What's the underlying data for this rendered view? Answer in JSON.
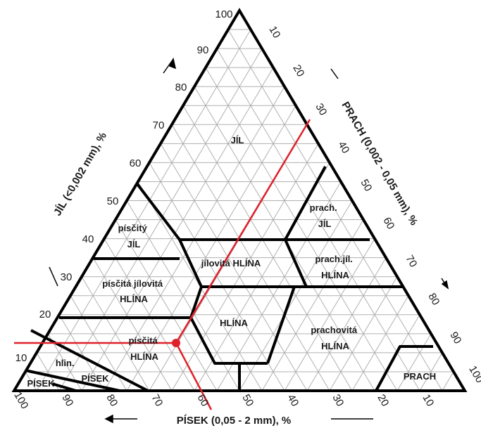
{
  "axes": {
    "left": {
      "title": "JÍL (<0,002 mm), %",
      "ticks": [
        "100",
        "90",
        "80",
        "70",
        "60",
        "50",
        "40",
        "30",
        "20",
        "10"
      ]
    },
    "right": {
      "title": "PRACH (0,002 - 0,05 mm), %",
      "ticks": [
        "10",
        "20",
        "30",
        "40",
        "50",
        "60",
        "70",
        "80",
        "90",
        "100"
      ]
    },
    "bottom": {
      "title": "PÍSEK (0,05 - 2 mm), %",
      "ticks": [
        "100",
        "90",
        "80",
        "70",
        "60",
        "50",
        "40",
        "30",
        "20",
        "10"
      ]
    }
  },
  "regions": [
    {
      "id": "jil",
      "lines": [
        "JÍL"
      ]
    },
    {
      "id": "piscity-jil",
      "lines": [
        "písčitý",
        "JÍL"
      ]
    },
    {
      "id": "prach-jil",
      "lines": [
        "prach.",
        "JÍL"
      ]
    },
    {
      "id": "jilovita-hlina",
      "lines": [
        "jílovitá HLÍNA"
      ]
    },
    {
      "id": "prach-jil-hlina",
      "lines": [
        "prach.jíl.",
        "HLÍNA"
      ]
    },
    {
      "id": "piscita-jilovita-hlina",
      "lines": [
        "písčitá jílovitá",
        "HLÍNA"
      ]
    },
    {
      "id": "hlina",
      "lines": [
        "HLÍNA"
      ]
    },
    {
      "id": "prachovita-hlina",
      "lines": [
        "prachovitá",
        "HLÍNA"
      ]
    },
    {
      "id": "piscita-hlina",
      "lines": [
        "písčitá",
        "HLÍNA"
      ]
    },
    {
      "id": "hlin-pisek",
      "lines": [
        "hlin.",
        "PÍSEK"
      ]
    },
    {
      "id": "pisek",
      "lines": [
        "PÍSEK"
      ]
    },
    {
      "id": "prach",
      "lines": [
        "PRACH"
      ]
    }
  ],
  "colors": {
    "outline": "#000000",
    "grid": "#b0b0b0",
    "marker": "#e0202a",
    "text": "#1a1a1a"
  }
}
